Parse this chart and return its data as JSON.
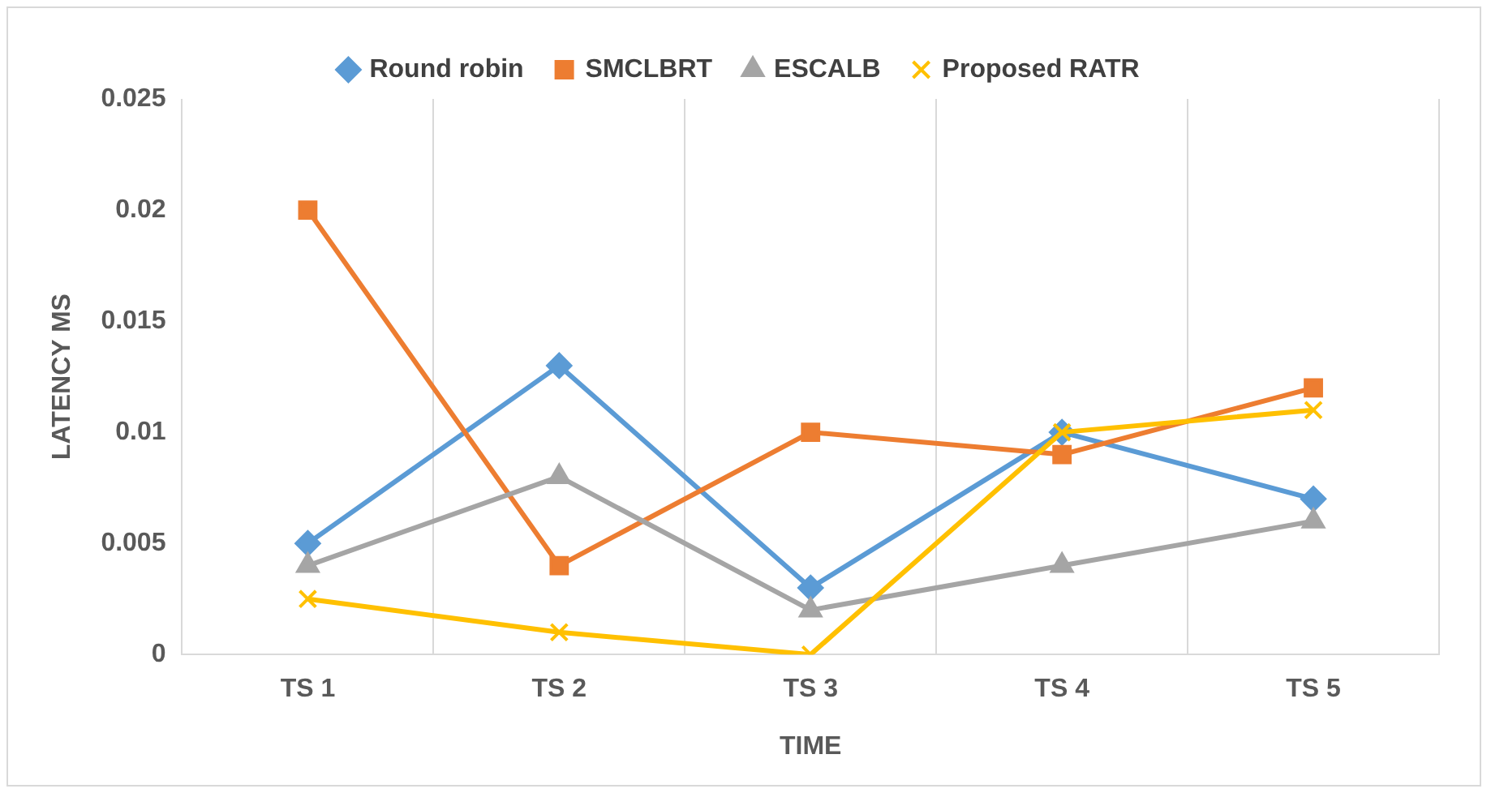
{
  "chart_data": {
    "type": "line",
    "xlabel": "TIME",
    "ylabel": "LATENCY MS",
    "categories": [
      "TS 1",
      "TS 2",
      "TS 3",
      "TS 4",
      "TS 5"
    ],
    "ylim": [
      0,
      0.025
    ],
    "yticks": [
      0,
      0.005,
      0.01,
      0.015,
      0.02,
      0.025
    ],
    "grid": "x",
    "legend": "top",
    "line_style": "solid",
    "series": [
      {
        "name": "Round robin",
        "color": "#5b9bd5",
        "marker": "diamond",
        "values": [
          0.005,
          0.013,
          0.003,
          0.01,
          0.007
        ]
      },
      {
        "name": "SMCLBRT",
        "color": "#ed7d31",
        "marker": "square",
        "values": [
          0.02,
          0.004,
          0.01,
          0.009,
          0.012
        ]
      },
      {
        "name": "ESCALB",
        "color": "#a5a5a5",
        "marker": "triangle",
        "values": [
          0.004,
          0.008,
          0.002,
          0.004,
          0.006
        ]
      },
      {
        "name": "Proposed RATR",
        "color": "#ffc000",
        "marker": "cross",
        "values": [
          0.0025,
          0.001,
          0,
          0.01,
          0.011
        ]
      }
    ]
  }
}
